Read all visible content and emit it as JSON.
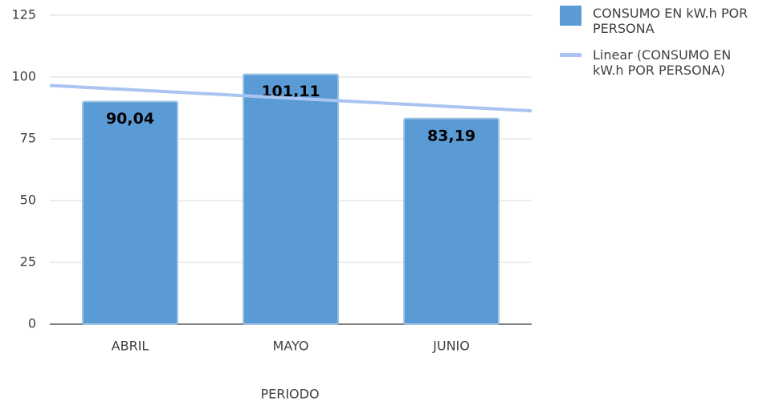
{
  "chart_data": {
    "type": "bar",
    "x_label": "PERIODO",
    "categories": [
      "ABRIL",
      "MAYO",
      "JUNIO"
    ],
    "series": [
      {
        "name": "CONSUMO EN kW.h POR PERSONA",
        "color": "#5b9bd5",
        "values": [
          90.04,
          101.11,
          83.19
        ],
        "value_labels": [
          "90,04",
          "101,11",
          "83,19"
        ]
      },
      {
        "name": "Linear (CONSUMO EN kW.h POR PERSONA)",
        "color": "#a9c4f0",
        "type": "trendline",
        "values": [
          94.87,
          91.45,
          88.02
        ]
      }
    ],
    "ylim": [
      0,
      125
    ],
    "yticks": [
      0,
      25,
      50,
      75,
      100,
      125
    ],
    "grid": true
  }
}
